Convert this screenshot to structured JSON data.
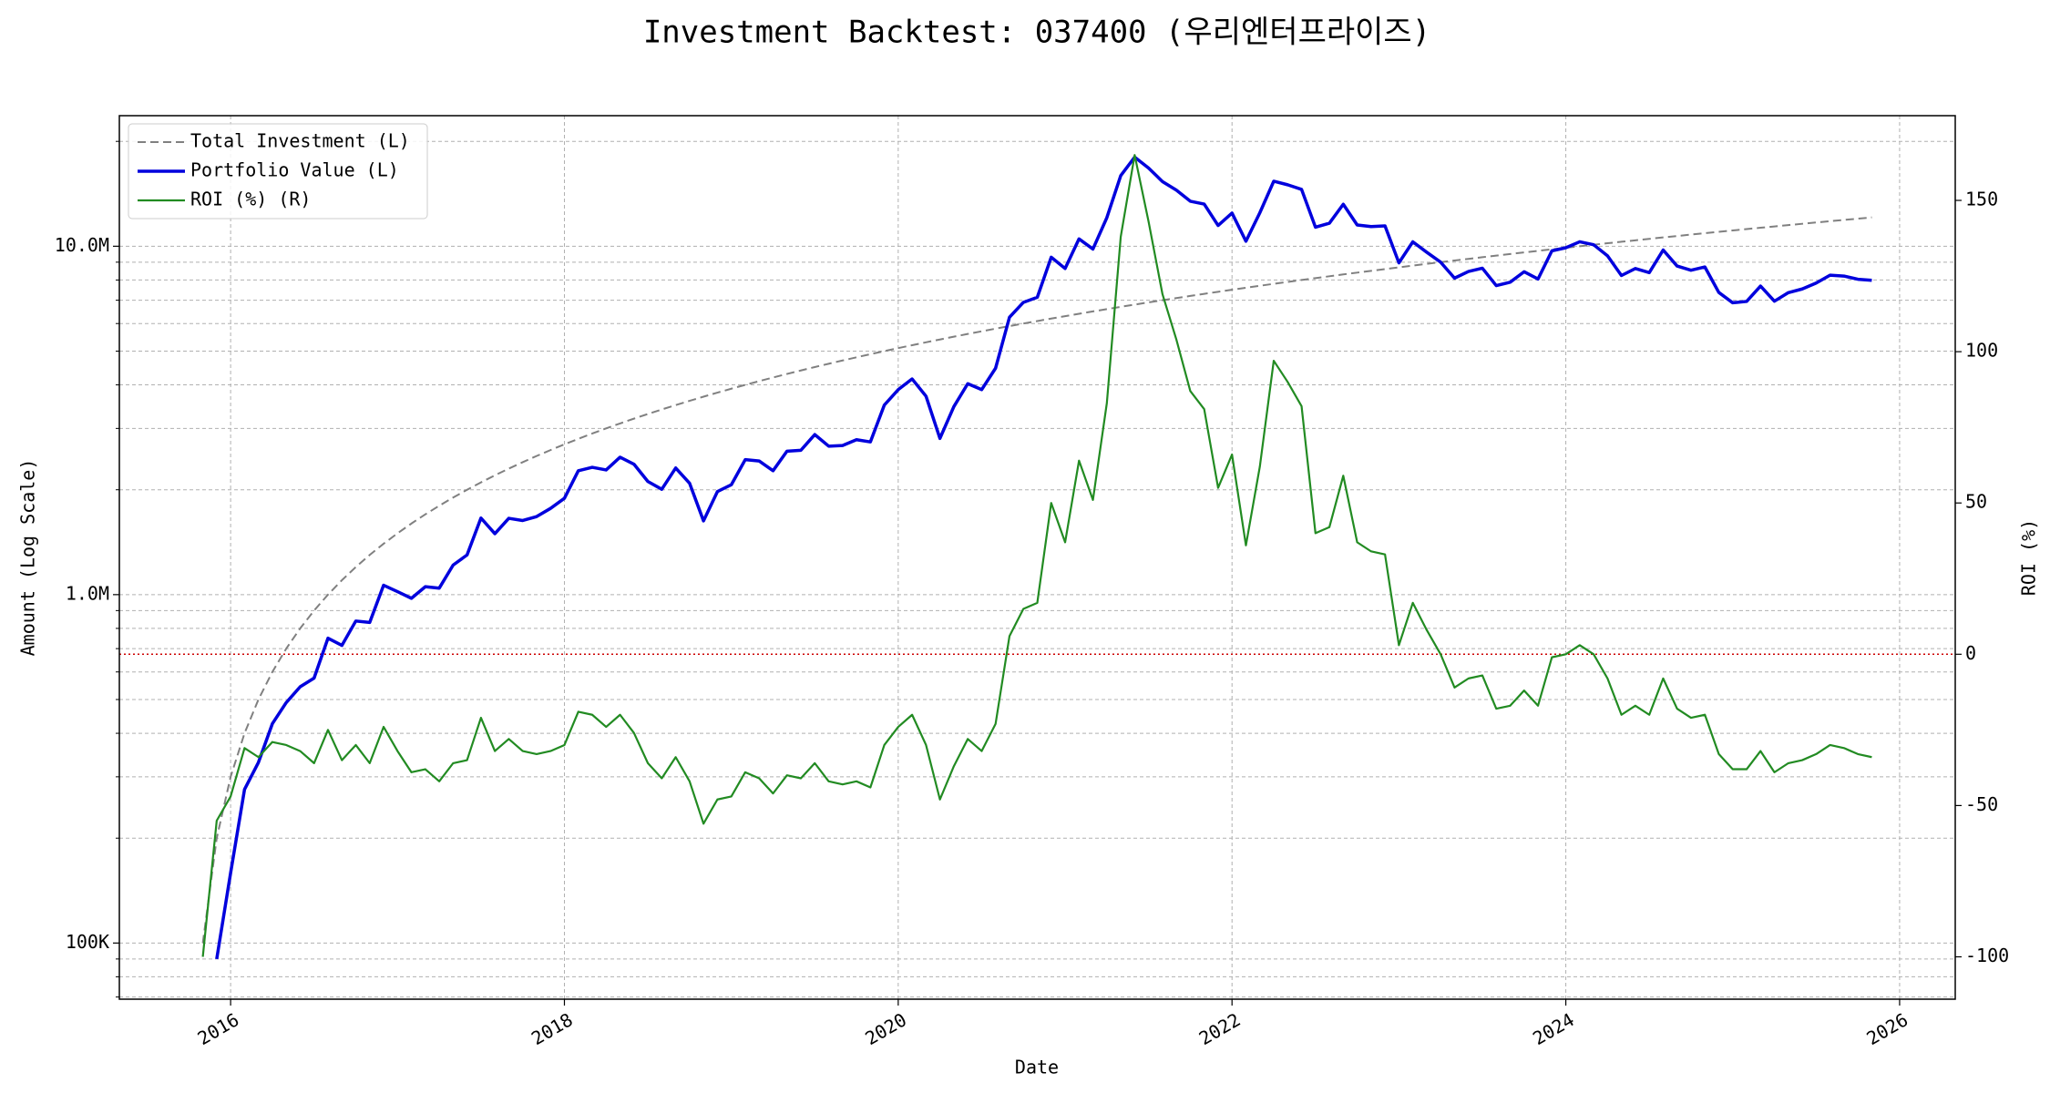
{
  "chart_data": {
    "type": "line",
    "title": "Investment Backtest: 037400 (우리엔터프라이즈)",
    "xlabel": "Date",
    "ylabel": "Amount (Log Scale)",
    "y2label": "ROI (%)",
    "ylog": true,
    "grid": true,
    "legend": "upper left",
    "ycolor": "#0000cc",
    "y2color": "#228b22",
    "refline": {
      "axis": "y2",
      "value": 0,
      "color": "#cc0000"
    },
    "xlim": [
      "2015-05",
      "2026-05"
    ],
    "xticks": [
      "2016",
      "2018",
      "2020",
      "2022",
      "2024",
      "2026"
    ],
    "ylim": [
      69000,
      23700000
    ],
    "yticks": [
      {
        "value": 100000,
        "label": "100K"
      },
      {
        "value": 1000000,
        "label": "1.0M"
      },
      {
        "value": 10000000,
        "label": "10.0M"
      }
    ],
    "yminorticks": [
      70000,
      80000,
      90000,
      200000,
      300000,
      400000,
      500000,
      600000,
      700000,
      800000,
      900000,
      2000000,
      3000000,
      4000000,
      5000000,
      6000000,
      7000000,
      8000000,
      9000000,
      20000000
    ],
    "y2lim": [
      -114,
      178
    ],
    "y2ticks": [
      -100,
      -50,
      0,
      50,
      100,
      150
    ],
    "x": [
      "2015-11",
      "2015-12",
      "2016-01",
      "2016-02",
      "2016-03",
      "2016-04",
      "2016-05",
      "2016-06",
      "2016-07",
      "2016-08",
      "2016-09",
      "2016-10",
      "2016-11",
      "2016-12",
      "2017-01",
      "2017-02",
      "2017-03",
      "2017-04",
      "2017-05",
      "2017-06",
      "2017-07",
      "2017-08",
      "2017-09",
      "2017-10",
      "2017-11",
      "2017-12",
      "2018-01",
      "2018-02",
      "2018-03",
      "2018-04",
      "2018-05",
      "2018-06",
      "2018-07",
      "2018-08",
      "2018-09",
      "2018-10",
      "2018-11",
      "2018-12",
      "2019-01",
      "2019-02",
      "2019-03",
      "2019-04",
      "2019-05",
      "2019-06",
      "2019-07",
      "2019-08",
      "2019-09",
      "2019-10",
      "2019-11",
      "2019-12",
      "2020-01",
      "2020-02",
      "2020-03",
      "2020-04",
      "2020-05",
      "2020-06",
      "2020-07",
      "2020-08",
      "2020-09",
      "2020-10",
      "2020-11",
      "2020-12",
      "2021-01",
      "2021-02",
      "2021-03",
      "2021-04",
      "2021-05",
      "2021-06",
      "2021-07",
      "2021-08",
      "2021-09",
      "2021-10",
      "2021-11",
      "2021-12",
      "2022-01",
      "2022-02",
      "2022-03",
      "2022-04",
      "2022-05",
      "2022-06",
      "2022-07",
      "2022-08",
      "2022-09",
      "2022-10",
      "2022-11",
      "2022-12",
      "2023-01",
      "2023-02",
      "2023-03",
      "2023-04",
      "2023-05",
      "2023-06",
      "2023-07",
      "2023-08",
      "2023-09",
      "2023-10",
      "2023-11",
      "2023-12",
      "2024-01",
      "2024-02",
      "2024-03",
      "2024-04",
      "2024-05",
      "2024-06",
      "2024-07",
      "2024-08",
      "2024-09",
      "2024-10",
      "2024-11",
      "2024-12",
      "2025-01",
      "2025-02",
      "2025-03",
      "2025-04",
      "2025-05",
      "2025-06",
      "2025-07",
      "2025-08",
      "2025-09",
      "2025-10",
      "2025-11"
    ],
    "series": [
      {
        "name": "Total Investment (L)",
        "color": "#808080",
        "dash": true,
        "width": 2,
        "axis": "y",
        "values": [
          100000,
          200000,
          300000,
          400000,
          500000,
          600000,
          700000,
          800000,
          900000,
          1000000,
          1100000,
          1200000,
          1300000,
          1400000,
          1500000,
          1600000,
          1700000,
          1800000,
          1900000,
          2000000,
          2100000,
          2200000,
          2300000,
          2400000,
          2500000,
          2600000,
          2700000,
          2800000,
          2900000,
          3000000,
          3100000,
          3200000,
          3300000,
          3400000,
          3500000,
          3600000,
          3700000,
          3800000,
          3900000,
          4000000,
          4100000,
          4200000,
          4300000,
          4400000,
          4500000,
          4600000,
          4700000,
          4800000,
          4900000,
          5000000,
          5100000,
          5200000,
          5300000,
          5400000,
          5500000,
          5600000,
          5700000,
          5800000,
          5900000,
          6000000,
          6100000,
          6200000,
          6300000,
          6400000,
          6500000,
          6600000,
          6700000,
          6800000,
          6900000,
          7000000,
          7100000,
          7200000,
          7300000,
          7400000,
          7500000,
          7600000,
          7700000,
          7800000,
          7900000,
          8000000,
          8100000,
          8200000,
          8300000,
          8400000,
          8500000,
          8600000,
          8700000,
          8800000,
          8900000,
          9000000,
          9100000,
          9200000,
          9300000,
          9400000,
          9500000,
          9600000,
          9700000,
          9800000,
          9900000,
          10000000,
          10100000,
          10200000,
          10300000,
          10400000,
          10500000,
          10600000,
          10700000,
          10800000,
          10900000,
          11000000,
          11100000,
          11200000,
          11300000,
          11400000,
          11500000,
          11600000,
          11700000,
          11800000,
          11900000,
          12000000,
          12100000
        ]
      },
      {
        "name": "Portfolio Value (L)",
        "color": "#0000dd",
        "dash": false,
        "width": 3.5,
        "axis": "y",
        "values": [
          0,
          90000,
          159000,
          276000,
          330000,
          426000,
          490000,
          544000,
          576000,
          750000,
          715000,
          840000,
          832000,
          1064000,
          1020000,
          976000,
          1054000,
          1044000,
          1216000,
          1300000,
          1659000,
          1496000,
          1656000,
          1632000,
          1675000,
          1768000,
          1890000,
          2268000,
          2320000,
          2280000,
          2480000,
          2368000,
          2112000,
          2006000,
          2310000,
          2088000,
          1628000,
          1976000,
          2067000,
          2440000,
          2419000,
          2268000,
          2580000,
          2596000,
          2880000,
          2668000,
          2679000,
          2784000,
          2744000,
          3500000,
          3876000,
          4160000,
          3710000,
          2808000,
          3465000,
          4032000,
          3876000,
          4466000,
          6254000,
          6900000,
          7137000,
          9300000,
          8631000,
          10496000,
          9815000,
          12078000,
          15946000,
          18020000,
          16767000,
          15330000,
          14484000,
          13464000,
          13213000,
          11470000,
          12450000,
          10336000,
          12474000,
          15366000,
          15010000,
          14560000,
          11340000,
          11644000,
          13197000,
          11508000,
          11390000,
          11438000,
          8961000,
          10296000,
          9612000,
          9000000,
          8099000,
          8464000,
          8649000,
          7708000,
          7885000,
          8448000,
          8051000,
          9702000,
          9900000,
          10300000,
          10100000,
          9384000,
          8240000,
          8632000,
          8400000,
          9752000,
          8774000,
          8532000,
          8720000,
          7370000,
          6882000,
          6944000,
          7684000,
          6954000,
          7360000,
          7540000,
          7839000,
          8260000,
          8211000,
          8040000,
          7986000
        ]
      },
      {
        "name": "ROI (%) (R)",
        "color": "#228b22",
        "dash": false,
        "width": 2.2,
        "axis": "y2",
        "values": [
          -100,
          -55,
          -47,
          -31,
          -34,
          -29,
          -30,
          -32,
          -36,
          -25,
          -35,
          -30,
          -36,
          -24,
          -32,
          -39,
          -38,
          -42,
          -36,
          -35,
          -21,
          -32,
          -28,
          -32,
          -33,
          -32,
          -30,
          -19,
          -20,
          -24,
          -20,
          -26,
          -36,
          -41,
          -34,
          -42,
          -56,
          -48,
          -47,
          -39,
          -41,
          -46,
          -40,
          -41,
          -36,
          -42,
          -43,
          -42,
          -44,
          -30,
          -24,
          -20,
          -30,
          -48,
          -37,
          -28,
          -32,
          -23,
          6,
          15,
          17,
          50,
          37,
          64,
          51,
          83,
          138,
          165,
          143,
          119,
          104,
          87,
          81,
          55,
          66,
          36,
          62,
          97,
          90,
          82,
          40,
          42,
          59,
          37,
          34,
          33,
          3,
          17,
          8,
          0,
          -11,
          -8,
          -7,
          -18,
          -17,
          -12,
          -17,
          -1,
          0,
          3,
          0,
          -8,
          -20,
          -17,
          -20,
          -8,
          -18,
          -21,
          -20,
          -33,
          -38,
          -38,
          -32,
          -39,
          -36,
          -35,
          -33,
          -30,
          -31,
          -33,
          -34
        ]
      }
    ]
  }
}
